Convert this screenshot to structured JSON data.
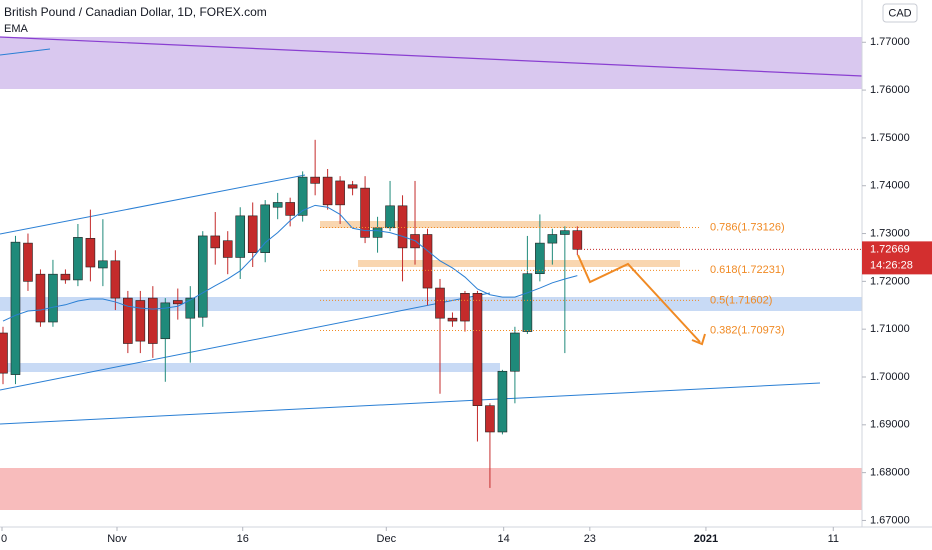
{
  "chart_data": {
    "type": "candlestick",
    "title": "British Pound / Canadian Dollar, 1D, FOREX.com",
    "currency": "CAD",
    "up_color": "#1f8a7a",
    "down_color": "#c42b2b",
    "open": [
      1.7092,
      1.7005,
      1.728,
      1.7215,
      1.7115,
      1.7215,
      1.7203,
      1.729,
      1.7228,
      1.7243,
      1.7165,
      1.716,
      1.7165,
      1.708,
      1.716,
      1.7123,
      1.7125,
      1.7295,
      1.7285,
      1.725,
      1.7337,
      1.726,
      1.7355,
      1.7365,
      1.7338,
      1.7418,
      1.7418,
      1.741,
      1.7402,
      1.7395,
      1.7292,
      1.7312,
      1.7358,
      1.7298,
      1.7298,
      1.7186,
      1.7123,
      1.7175,
      1.7175,
      1.694,
      1.6885,
      1.7012,
      1.7095,
      1.7216,
      1.728,
      1.7298,
      1.7306
    ],
    "high": [
      1.7105,
      1.7295,
      1.73,
      1.7225,
      1.7245,
      1.7225,
      1.732,
      1.735,
      1.733,
      1.7265,
      1.718,
      1.718,
      1.719,
      1.7165,
      1.7185,
      1.719,
      1.7305,
      1.7345,
      1.7305,
      1.7355,
      1.7365,
      1.737,
      1.7385,
      1.7375,
      1.743,
      1.7496,
      1.7435,
      1.742,
      1.741,
      1.742,
      1.7335,
      1.741,
      1.738,
      1.741,
      1.731,
      1.7205,
      1.7135,
      1.718,
      1.718,
      1.6945,
      1.7015,
      1.7105,
      1.7295,
      1.734,
      1.731,
      1.7315,
      1.7315
    ],
    "low": [
      1.6985,
      1.6985,
      1.718,
      1.7105,
      1.7105,
      1.7195,
      1.719,
      1.72,
      1.719,
      1.714,
      1.705,
      1.705,
      1.704,
      1.699,
      1.712,
      1.703,
      1.7105,
      1.7235,
      1.7215,
      1.7205,
      1.723,
      1.724,
      1.733,
      1.7315,
      1.7325,
      1.738,
      1.735,
      1.732,
      1.738,
      1.728,
      1.726,
      1.7305,
      1.72,
      1.7235,
      1.715,
      1.6965,
      1.7105,
      1.7095,
      1.6865,
      1.6768,
      1.688,
      1.6945,
      1.709,
      1.72,
      1.7235,
      1.705,
      1.7255
    ],
    "close": [
      1.7008,
      1.7282,
      1.72,
      1.7115,
      1.7215,
      1.7203,
      1.7292,
      1.723,
      1.7243,
      1.7165,
      1.707,
      1.7075,
      1.707,
      1.7155,
      1.7153,
      1.7165,
      1.7295,
      1.727,
      1.725,
      1.7337,
      1.726,
      1.736,
      1.7365,
      1.7338,
      1.7418,
      1.7405,
      1.736,
      1.736,
      1.7395,
      1.7292,
      1.7312,
      1.7358,
      1.727,
      1.727,
      1.7186,
      1.7123,
      1.7117,
      1.7117,
      1.694,
      1.6885,
      1.7012,
      1.7092,
      1.7216,
      1.728,
      1.7298,
      1.7306,
      1.7267
    ],
    "ema": {
      "name": "EMA",
      "color": "#2a7fd4",
      "values": [
        1.7117,
        1.7129,
        1.7138,
        1.714,
        1.7146,
        1.7151,
        1.7159,
        1.7163,
        1.7163,
        1.7157,
        1.7148,
        1.7144,
        1.7142,
        1.7144,
        1.7148,
        1.7161,
        1.7176,
        1.7191,
        1.7205,
        1.7222,
        1.7249,
        1.7281,
        1.7302,
        1.7327,
        1.7348,
        1.7359,
        1.7355,
        1.734,
        1.7311,
        1.7306,
        1.7306,
        1.7302,
        1.7294,
        1.7285,
        1.7264,
        1.7243,
        1.7228,
        1.7209,
        1.7184,
        1.7172,
        1.7167,
        1.7167,
        1.7176,
        1.7186,
        1.7197,
        1.7205,
        1.7212
      ]
    },
    "xlim": [
      -0.24,
      68.8
    ],
    "xticks": [
      {
        "value": -0.08,
        "label": "0"
      },
      {
        "value": 9.13,
        "label": "Nov"
      },
      {
        "value": 19.2,
        "label": "16"
      },
      {
        "value": 30.7,
        "label": "Dec"
      },
      {
        "value": 40.1,
        "label": "14"
      },
      {
        "value": 47.0,
        "label": "23"
      },
      {
        "value": 56.3,
        "label": "2021"
      },
      {
        "value": 66.5,
        "label": "11"
      }
    ],
    "ylim": [
      1.66863,
      1.77884
    ],
    "yticks": [
      {
        "value": 1.77,
        "label": "1.77000"
      },
      {
        "value": 1.76,
        "label": "1.76000"
      },
      {
        "value": 1.75,
        "label": "1.75000"
      },
      {
        "value": 1.74,
        "label": "1.74000"
      },
      {
        "value": 1.73,
        "label": "1.73000"
      },
      {
        "value": 1.72,
        "label": "1.72000"
      },
      {
        "value": 1.71,
        "label": "1.71000"
      },
      {
        "value": 1.7,
        "label": "1.70000"
      },
      {
        "value": 1.69,
        "label": "1.69000"
      },
      {
        "value": 1.68,
        "label": "1.68000"
      },
      {
        "value": 1.67,
        "label": "1.67000"
      }
    ],
    "fib_color": "#f08a24",
    "fib_levels": [
      {
        "value": 1.73126,
        "label": "0.786(1.73126)"
      },
      {
        "value": 1.72231,
        "label": "0.618(1.72231)"
      },
      {
        "value": 1.71602,
        "label": "0.5(1.71602)"
      },
      {
        "value": 1.70973,
        "label": "0.382(1.70973)"
      }
    ],
    "last_price": {
      "value": 1.72669,
      "label": "1.72669"
    },
    "countdown": "14:26:28"
  }
}
